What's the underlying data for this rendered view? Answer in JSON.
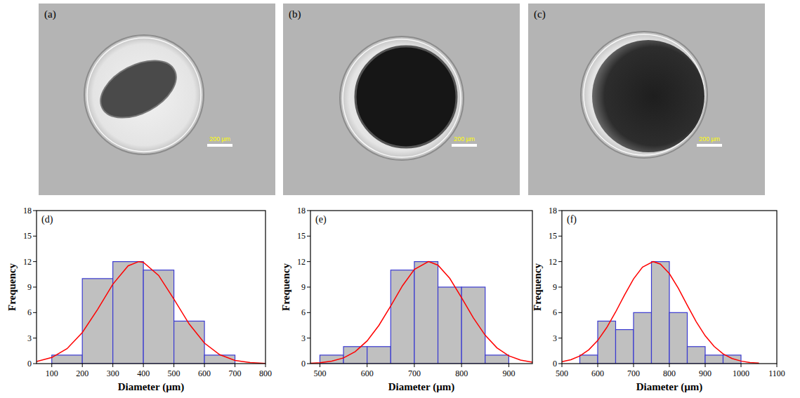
{
  "images": [
    {
      "label": "(a)",
      "scale_bar": "200 µm"
    },
    {
      "label": "(b)",
      "scale_bar": "200 µm"
    },
    {
      "label": "(c)",
      "scale_bar": "200 µm"
    }
  ],
  "chart_data": [
    {
      "type": "histogram",
      "title": "(d)",
      "x_label": "Diameter (µm)",
      "y_label": "Frequency",
      "xlim": [
        50,
        800
      ],
      "xticks": [
        100,
        200,
        300,
        400,
        500,
        600,
        700,
        800
      ],
      "ylim": [
        0,
        18
      ],
      "yticks": [
        0,
        3,
        6,
        9,
        12,
        15,
        18
      ],
      "grid": false,
      "series": [
        {
          "type": "histogram",
          "color": "#c0c0c0",
          "bins": [
            100,
            200,
            300,
            400,
            500,
            600,
            700
          ],
          "values": [
            1,
            10,
            12,
            11,
            5,
            1
          ]
        },
        {
          "type": "line",
          "color": "#ff0000",
          "x": [
            50,
            100,
            150,
            200,
            250,
            300,
            350,
            385,
            400,
            450,
            500,
            550,
            600,
            650,
            700,
            750,
            800
          ],
          "values": [
            0.24,
            0.72,
            1.76,
            3.66,
            6.37,
            9.34,
            11.5,
            12,
            11.91,
            10.37,
            7.58,
            4.66,
            2.41,
            1.05,
            0.38,
            0.12,
            0.02
          ]
        }
      ]
    },
    {
      "type": "histogram",
      "title": "(e)",
      "x_label": "Diameter (µm)",
      "y_label": "Frequency",
      "xlim": [
        480,
        950
      ],
      "xticks": [
        500,
        600,
        700,
        800,
        900
      ],
      "ylim": [
        0,
        18
      ],
      "yticks": [
        0,
        3,
        6,
        9,
        12,
        15,
        18
      ],
      "grid": false,
      "series": [
        {
          "type": "histogram",
          "color": "#c0c0c0",
          "bins": [
            500,
            550,
            600,
            650,
            700,
            750,
            800,
            850,
            900
          ],
          "values": [
            1,
            2,
            2,
            11,
            12,
            9,
            9,
            1
          ]
        },
        {
          "type": "line",
          "color": "#ff0000",
          "x": [
            480,
            500,
            525,
            550,
            575,
            600,
            625,
            650,
            675,
            700,
            730,
            750,
            775,
            800,
            825,
            850,
            875,
            900,
            925,
            950
          ],
          "values": [
            0.05,
            0.11,
            0.29,
            0.67,
            1.42,
            2.67,
            4.5,
            6.79,
            9.17,
            11.08,
            12,
            11.58,
            10.03,
            7.76,
            5.38,
            3.34,
            1.85,
            0.92,
            0.41,
            0.16
          ]
        }
      ]
    },
    {
      "type": "histogram",
      "title": "(f)",
      "x_label": "Diameter (µm)",
      "y_label": "Frequency",
      "xlim": [
        500,
        1100
      ],
      "xticks": [
        500,
        600,
        700,
        800,
        900,
        1000,
        1100
      ],
      "ylim": [
        0,
        18
      ],
      "yticks": [
        0,
        3,
        6,
        9,
        12,
        15,
        18
      ],
      "grid": false,
      "series": [
        {
          "type": "histogram",
          "color": "#c0c0c0",
          "bins": [
            550,
            600,
            650,
            700,
            750,
            800,
            850,
            900,
            950,
            1000
          ],
          "values": [
            1,
            5,
            4,
            6,
            12,
            6,
            2,
            1,
            1
          ]
        },
        {
          "type": "line",
          "color": "#ff0000",
          "x": [
            500,
            525,
            550,
            575,
            600,
            625,
            650,
            675,
            700,
            725,
            755,
            775,
            800,
            825,
            850,
            875,
            900,
            925,
            950,
            975,
            1000,
            1025,
            1050
          ],
          "values": [
            0.22,
            0.46,
            0.9,
            1.62,
            2.72,
            4.23,
            6.07,
            8.08,
            9.96,
            11.35,
            12,
            11.71,
            10.59,
            8.87,
            6.87,
            4.93,
            3.28,
            2.02,
            1.15,
            0.6,
            0.3,
            0.13,
            0.06
          ]
        }
      ]
    }
  ]
}
